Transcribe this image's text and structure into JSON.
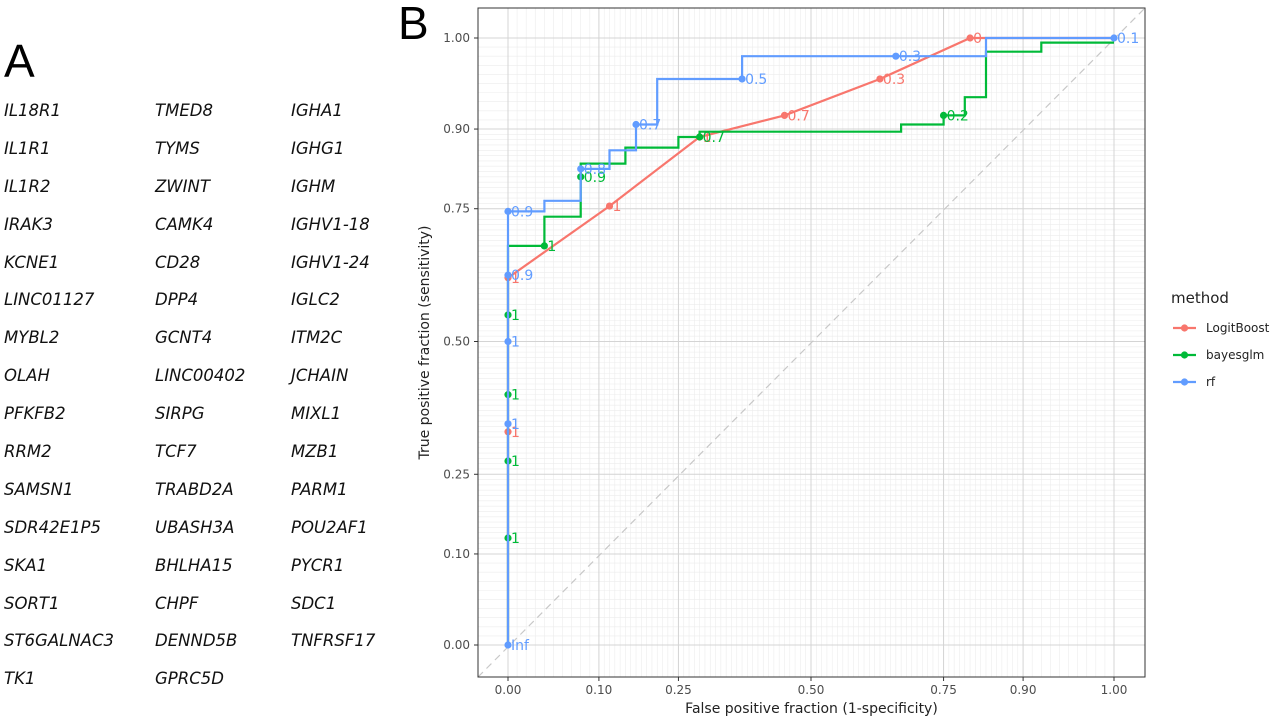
{
  "panel_a": {
    "letter": "A",
    "genes": [
      [
        "IL18R1",
        "IL1R1",
        "IL1R2",
        "IRAK3",
        "KCNE1",
        "LINC01127",
        "MYBL2",
        "OLAH",
        "PFKFB2",
        "RRM2",
        "SAMSN1",
        "SDR42E1P5",
        "SKA1",
        "SORT1",
        "ST6GALNAC3",
        "TK1"
      ],
      [
        "TMED8",
        "TYMS",
        "ZWINT",
        "CAMK4",
        "CD28",
        "DPP4",
        "GCNT4",
        "LINC00402",
        "SIRPG",
        "TCF7",
        "TRABD2A",
        "UBASH3A",
        "BHLHA15",
        "CHPF",
        "DENND5B",
        "GPRC5D"
      ],
      [
        "IGHA1",
        "IGHG1",
        "IGHM",
        "IGHV1-18",
        "IGHV1-24",
        "IGLC2",
        "ITM2C",
        "JCHAIN",
        "MIXL1",
        "MZB1",
        "PARM1",
        "POU2AF1",
        "PYCR1",
        "SDC1",
        "TNFRSF17"
      ]
    ]
  },
  "panel_b": {
    "letter": "B"
  },
  "chart_data": {
    "type": "line",
    "title": "",
    "xlabel": "False positive fraction (1-specificity)",
    "ylabel": "True positive fraction (sensitivity)",
    "xlim": [
      -0.04,
      1.04
    ],
    "ylim": [
      -0.06,
      1.06
    ],
    "x_ticks": [
      0.0,
      0.1,
      0.25,
      0.5,
      0.75,
      0.9,
      1.0
    ],
    "x_tick_labels": [
      "0.00",
      "0.10",
      "0.25",
      "0.50",
      "0.75",
      "0.90",
      "1.00"
    ],
    "y_ticks": [
      0.0,
      0.1,
      0.25,
      0.5,
      0.75,
      0.9,
      1.0
    ],
    "y_tick_labels": [
      "0.00",
      "0.10",
      "0.25",
      "0.50",
      "0.75",
      "0.90",
      "1.00"
    ],
    "grid": true,
    "reference_line": "diagonal",
    "legend": {
      "title": "method",
      "position": "right"
    },
    "series": [
      {
        "name": "LogitBoost",
        "color": "#F8766D",
        "step": false,
        "x": [
          0.0,
          0.0,
          0.0,
          0.0,
          0.12,
          0.29,
          0.45,
          0.63,
          0.8,
          1.0
        ],
        "y": [
          0.0,
          0.33,
          0.62,
          0.62,
          0.755,
          0.885,
          0.915,
          0.955,
          1.0,
          1.0
        ],
        "cutoffs": [
          {
            "x": 0.0,
            "y": 0.33,
            "label": "1"
          },
          {
            "x": 0.0,
            "y": 0.62,
            "label": "1"
          },
          {
            "x": 0.12,
            "y": 0.755,
            "label": "1"
          },
          {
            "x": 0.29,
            "y": 0.885,
            "label": "1"
          },
          {
            "x": 0.45,
            "y": 0.915,
            "label": "0.7"
          },
          {
            "x": 0.63,
            "y": 0.955,
            "label": "0.3"
          },
          {
            "x": 0.8,
            "y": 1.0,
            "label": "0"
          }
        ]
      },
      {
        "name": "bayesglm",
        "color": "#00BA38",
        "step": true,
        "x": [
          0.0,
          0.0,
          0.04,
          0.04,
          0.08,
          0.08,
          0.15,
          0.15,
          0.25,
          0.25,
          0.29,
          0.29,
          0.67,
          0.67,
          0.75,
          0.75,
          0.79,
          0.79,
          0.83,
          0.83,
          0.92,
          0.92,
          1.0
        ],
        "y": [
          0.0,
          0.68,
          0.68,
          0.735,
          0.735,
          0.835,
          0.835,
          0.865,
          0.865,
          0.885,
          0.885,
          0.895,
          0.895,
          0.905,
          0.905,
          0.915,
          0.915,
          0.935,
          0.935,
          0.985,
          0.985,
          0.995,
          0.995
        ],
        "cutoffs": [
          {
            "x": 0.0,
            "y": 0.13,
            "label": "1"
          },
          {
            "x": 0.0,
            "y": 0.275,
            "label": "1"
          },
          {
            "x": 0.0,
            "y": 0.4,
            "label": "1"
          },
          {
            "x": 0.0,
            "y": 0.55,
            "label": "1"
          },
          {
            "x": 0.04,
            "y": 0.68,
            "label": "1"
          },
          {
            "x": 0.08,
            "y": 0.81,
            "label": "0.9"
          },
          {
            "x": 0.29,
            "y": 0.885,
            "label": "0.7"
          },
          {
            "x": 0.75,
            "y": 0.915,
            "label": "0.2"
          }
        ]
      },
      {
        "name": "rf",
        "color": "#619CFF",
        "step": true,
        "x": [
          0.0,
          0.0,
          0.04,
          0.04,
          0.08,
          0.08,
          0.12,
          0.12,
          0.17,
          0.17,
          0.21,
          0.21,
          0.37,
          0.37,
          0.83,
          0.83,
          1.0
        ],
        "y": [
          0.0,
          0.745,
          0.745,
          0.765,
          0.765,
          0.825,
          0.825,
          0.86,
          0.86,
          0.905,
          0.905,
          0.955,
          0.955,
          0.98,
          0.98,
          1.0,
          1.0
        ],
        "cutoffs": [
          {
            "x": 0.0,
            "y": 0.0,
            "label": "Inf"
          },
          {
            "x": 0.0,
            "y": 0.345,
            "label": "1"
          },
          {
            "x": 0.0,
            "y": 0.5,
            "label": "1"
          },
          {
            "x": 0.0,
            "y": 0.625,
            "label": "0.9"
          },
          {
            "x": 0.0,
            "y": 0.745,
            "label": "0.9"
          },
          {
            "x": 0.08,
            "y": 0.825,
            "label": "0.8"
          },
          {
            "x": 0.17,
            "y": 0.905,
            "label": "0.7"
          },
          {
            "x": 0.37,
            "y": 0.955,
            "label": "0.5"
          },
          {
            "x": 0.66,
            "y": 0.98,
            "label": "0.3"
          },
          {
            "x": 1.0,
            "y": 1.0,
            "label": "0.1"
          }
        ]
      }
    ]
  }
}
